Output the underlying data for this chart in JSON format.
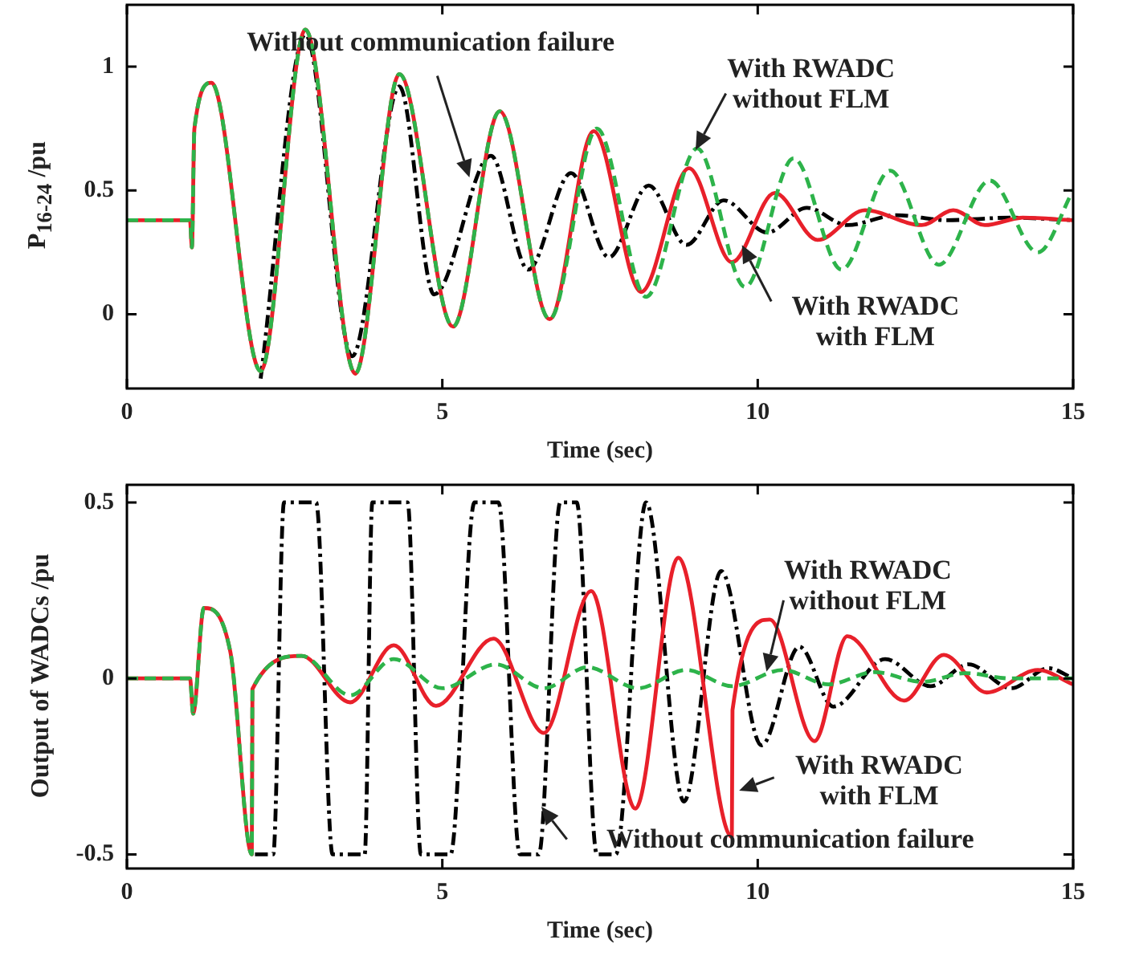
{
  "chart_data": [
    {
      "type": "line",
      "xlabel": "Time (sec)",
      "ylabel": "P$_{16-24}$ /pu",
      "xlim": [
        0,
        15
      ],
      "xticks": [
        0,
        5,
        10,
        15
      ],
      "ylim": [
        -0.3,
        1.25
      ],
      "yticks": [
        0,
        0.5,
        1
      ],
      "grid": false,
      "legend": false,
      "marker": "none",
      "annotations": [
        "Without communication failure",
        "With RWADC without FLM",
        "With RWADC with FLM"
      ],
      "series": [
        {
          "color": "#000000",
          "line_style": "dashdot",
          "x": [
            2.12,
            2.83,
            3.57,
            4.32,
            4.87,
            5.77,
            6.36,
            7.04,
            7.64,
            8.27,
            8.87,
            9.46,
            10.15,
            10.78,
            11.42,
            12.2,
            13,
            14,
            15
          ],
          "values": [
            -0.26,
            1.13,
            -0.17,
            0.92,
            0.08,
            0.64,
            0.18,
            0.57,
            0.23,
            0.52,
            0.28,
            0.46,
            0.33,
            0.43,
            0.36,
            0.4,
            0.38,
            0.39,
            0.38
          ]
        },
        {
          "color": "#e8202a",
          "line_style": "solid",
          "x": [
            0,
            1.0,
            1.03,
            1.07,
            1.34,
            2.12,
            2.83,
            3.62,
            4.32,
            5.17,
            5.91,
            6.7,
            7.4,
            8.15,
            8.91,
            9.59,
            10.27,
            10.95,
            11.7,
            12.6,
            13.1,
            13.6,
            14.2,
            15
          ],
          "values": [
            0.38,
            0.38,
            0.27,
            0.75,
            0.935,
            -0.23,
            1.15,
            -0.24,
            0.97,
            -0.05,
            0.82,
            -0.02,
            0.74,
            0.09,
            0.59,
            0.21,
            0.49,
            0.3,
            0.42,
            0.36,
            0.42,
            0.36,
            0.39,
            0.38
          ]
        },
        {
          "color": "#2db34a",
          "line_style": "dashed",
          "x": [
            0,
            1.0,
            1.03,
            1.07,
            1.34,
            2.12,
            2.83,
            3.62,
            4.32,
            5.17,
            5.91,
            6.7,
            7.45,
            8.23,
            9.04,
            9.8,
            10.57,
            11.33,
            12.1,
            12.87,
            13.68,
            14.44,
            15
          ],
          "values": [
            0.38,
            0.38,
            0.27,
            0.75,
            0.935,
            -0.23,
            1.15,
            -0.24,
            0.97,
            -0.05,
            0.82,
            -0.02,
            0.75,
            0.07,
            0.67,
            0.11,
            0.63,
            0.18,
            0.58,
            0.2,
            0.54,
            0.25,
            0.5
          ]
        }
      ]
    },
    {
      "type": "line",
      "xlabel": "Time (sec)",
      "ylabel": "Output of WADCs /pu",
      "xlim": [
        0,
        15
      ],
      "xticks": [
        0,
        5,
        10,
        15
      ],
      "ylim": [
        -0.54,
        0.55
      ],
      "yticks": [
        -0.5,
        0,
        0.5
      ],
      "grid": false,
      "legend": false,
      "marker": "none",
      "annotations": [
        "With RWADC without FLM",
        "With RWADC with FLM",
        "Without communication failure"
      ],
      "series": [
        {
          "color": "#000000",
          "line_style": "dashdot",
          "x": [
            2.03,
            2.32,
            2.49,
            3.0,
            3.26,
            3.77,
            3.89,
            4.45,
            4.66,
            5.13,
            5.51,
            5.89,
            6.23,
            6.53,
            6.87,
            7.13,
            7.45,
            7.75,
            8.23,
            8.83,
            9.42,
            10.06,
            10.66,
            11.2,
            12.02,
            12.74,
            13.34,
            14.02,
            14.61,
            15
          ],
          "values": [
            -0.5,
            -0.5,
            0.5,
            0.5,
            -0.5,
            -0.5,
            0.5,
            0.5,
            -0.5,
            -0.5,
            0.5,
            0.5,
            -0.5,
            -0.5,
            0.5,
            0.5,
            -0.5,
            -0.5,
            0.5,
            -0.35,
            0.305,
            -0.19,
            0.09,
            -0.08,
            0.055,
            -0.022,
            0.04,
            -0.028,
            0.029,
            0
          ]
        },
        {
          "color": "#e8202a",
          "line_style": "solid",
          "x": [
            0,
            1.0,
            1.05,
            1.22,
            1.64,
            1.98,
            1.99,
            2.77,
            3.54,
            4.23,
            4.9,
            5.81,
            6.61,
            7.36,
            8.06,
            8.74,
            9.59,
            9.6,
            10.19,
            10.9,
            11.42,
            12.32,
            12.95,
            13.63,
            14.44,
            15
          ],
          "values": [
            0,
            0,
            -0.1,
            0.2,
            0.075,
            -0.5,
            -0.03,
            0.064,
            -0.068,
            0.094,
            -0.078,
            0.113,
            -0.155,
            0.248,
            -0.37,
            0.343,
            -0.45,
            -0.09,
            0.167,
            -0.178,
            0.12,
            -0.063,
            0.067,
            -0.04,
            0.024,
            -0.017
          ]
        },
        {
          "color": "#2db34a",
          "line_style": "dashed",
          "x": [
            0,
            1.0,
            1.05,
            1.22,
            1.64,
            1.98,
            1.99,
            2.77,
            3.54,
            4.23,
            5.0,
            5.85,
            6.61,
            7.3,
            8.1,
            8.87,
            9.59,
            10.4,
            11.12,
            11.85,
            12.61,
            13.29,
            14,
            15
          ],
          "values": [
            0,
            0,
            -0.1,
            0.2,
            0.075,
            -0.5,
            -0.03,
            0.064,
            -0.048,
            0.055,
            -0.028,
            0.04,
            -0.028,
            0.032,
            -0.028,
            0.024,
            -0.022,
            0.024,
            -0.017,
            0.018,
            -0.01,
            0.015,
            0,
            0
          ]
        }
      ]
    }
  ]
}
